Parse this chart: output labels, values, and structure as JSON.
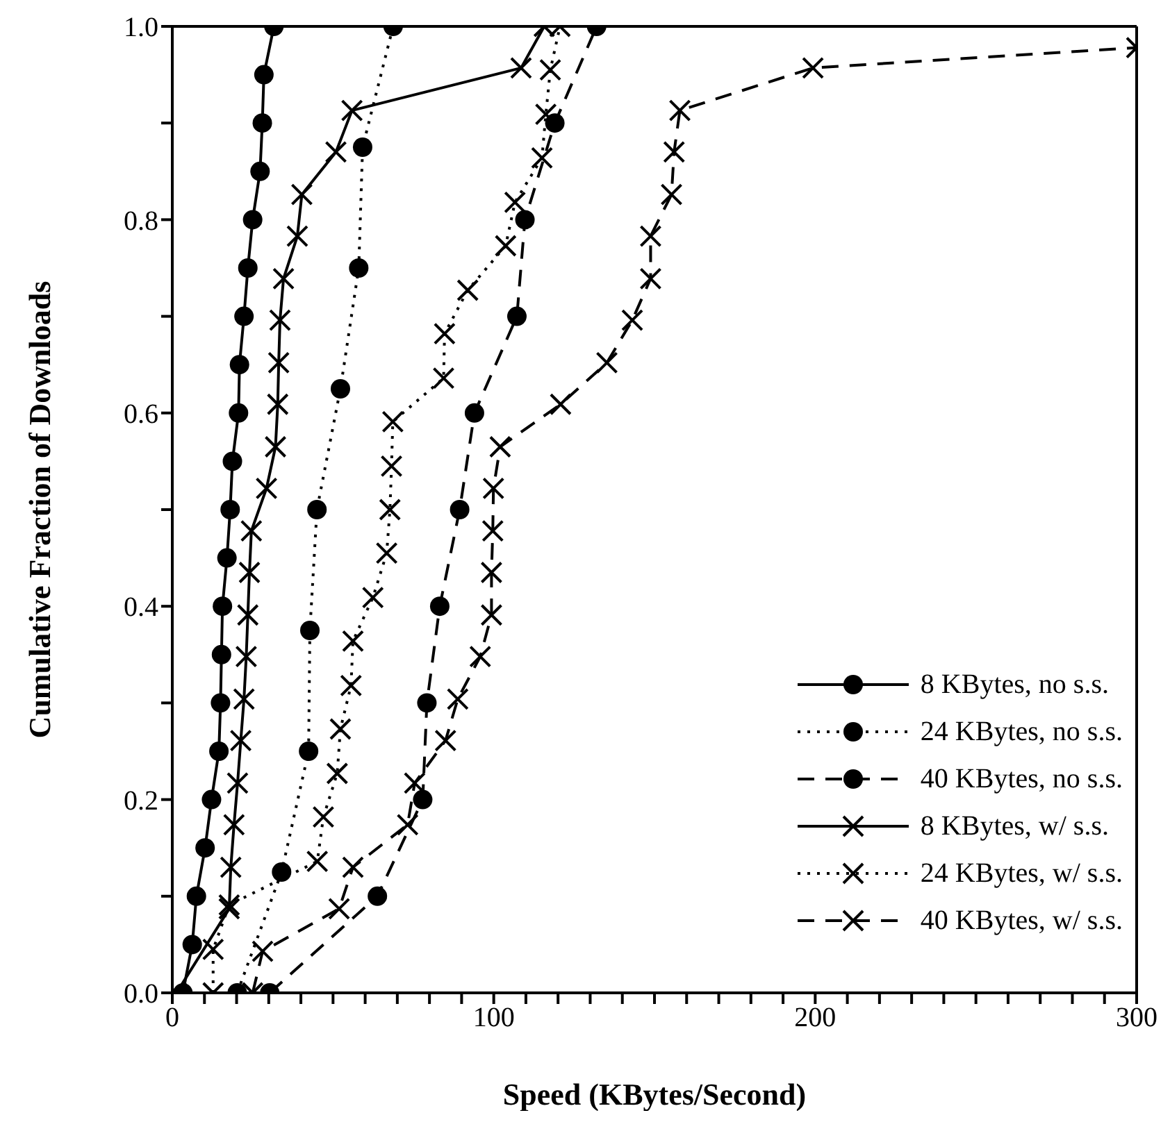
{
  "chart_data": {
    "type": "line",
    "xlabel": "Speed (KBytes/Second)",
    "ylabel": "Cumulative Fraction of Downloads",
    "xlim": [
      0,
      300
    ],
    "ylim": [
      0,
      1
    ],
    "xticks": [
      0,
      {
        "value": 10,
        "label": null
      },
      {
        "value": 20,
        "label": null
      },
      {
        "value": 30,
        "label": null
      },
      {
        "value": 40,
        "label": null
      },
      {
        "value": 50,
        "label": null
      },
      {
        "value": 60,
        "label": null
      },
      {
        "value": 70,
        "label": null
      },
      {
        "value": 80,
        "label": null
      },
      {
        "value": 90,
        "label": null
      },
      100,
      {
        "value": 110,
        "label": null
      },
      {
        "value": 120,
        "label": null
      },
      {
        "value": 130,
        "label": null
      },
      {
        "value": 140,
        "label": null
      },
      {
        "value": 150,
        "label": null
      },
      {
        "value": 160,
        "label": null
      },
      {
        "value": 170,
        "label": null
      },
      {
        "value": 180,
        "label": null
      },
      {
        "value": 190,
        "label": null
      },
      200,
      {
        "value": 210,
        "label": null
      },
      {
        "value": 220,
        "label": null
      },
      {
        "value": 230,
        "label": null
      },
      {
        "value": 240,
        "label": null
      },
      {
        "value": 250,
        "label": null
      },
      {
        "value": 260,
        "label": null
      },
      {
        "value": 270,
        "label": null
      },
      {
        "value": 280,
        "label": null
      },
      {
        "value": 290,
        "label": null
      },
      300
    ],
    "yticks": [
      {
        "value": 0,
        "label": "0.0"
      },
      {
        "value": 0.1,
        "label": null
      },
      {
        "value": 0.2,
        "label": "0.2"
      },
      {
        "value": 0.3,
        "label": null
      },
      {
        "value": 0.4,
        "label": "0.4"
      },
      {
        "value": 0.5,
        "label": null
      },
      {
        "value": 0.6,
        "label": "0.6"
      },
      {
        "value": 0.7,
        "label": null
      },
      {
        "value": 0.8,
        "label": "0.8"
      },
      {
        "value": 0.9,
        "label": null
      },
      {
        "value": 1,
        "label": "1.0"
      }
    ],
    "grid": false,
    "legend": "bottom right",
    "series": [
      {
        "name": "8 KBytes, no s.s.",
        "color": "#000000",
        "marker": "circle",
        "line_style": "solid",
        "x": [
          3.3,
          6.2,
          7.5,
          10.2,
          12.2,
          14.5,
          15,
          15.3,
          15.6,
          17,
          18,
          18.7,
          20.6,
          20.9,
          22.3,
          23.5,
          25,
          27.3,
          28,
          28.5,
          31.6
        ],
        "values": [
          0,
          0.05,
          0.1,
          0.15,
          0.2,
          0.25,
          0.3,
          0.35,
          0.4,
          0.45,
          0.5,
          0.55,
          0.6,
          0.65,
          0.7,
          0.75,
          0.8,
          0.85,
          0.9,
          0.95,
          1
        ]
      },
      {
        "name": "24 KBytes, no s.s.",
        "color": "#000000",
        "marker": "circle",
        "line_style": "dotted",
        "x": [
          20.2,
          34,
          42.4,
          42.8,
          45,
          52.3,
          58,
          59.2,
          68.7
        ],
        "values": [
          0,
          0.125,
          0.25,
          0.375,
          0.5,
          0.625,
          0.75,
          0.875,
          1
        ]
      },
      {
        "name": "40 KBytes, no s.s.",
        "color": "#000000",
        "marker": "circle",
        "line_style": "dashed",
        "x": [
          30.3,
          63.8,
          77.9,
          79.2,
          83.2,
          89.4,
          94,
          107.2,
          109.7,
          119,
          132
        ],
        "values": [
          0,
          0.1,
          0.2,
          0.3,
          0.4,
          0.5,
          0.6,
          0.7,
          0.8,
          0.9,
          1
        ]
      },
      {
        "name": "8 KBytes, w/ s.s.",
        "color": "#000000",
        "marker": "cross",
        "line_style": "solid",
        "x": [
          1.3,
          4.3,
          17.7,
          18.2,
          19.2,
          20.3,
          21.3,
          22.3,
          23,
          23.5,
          24,
          24.6,
          29.3,
          32.1,
          32.8,
          33.1,
          33.5,
          34.6,
          38.9,
          40.3,
          50.9,
          55.9,
          108.5,
          115.7
        ],
        "values": [
          0,
          null,
          0.087,
          0.13,
          0.174,
          0.217,
          0.261,
          0.304,
          0.348,
          0.391,
          0.435,
          0.478,
          0.522,
          0.565,
          0.609,
          0.652,
          0.696,
          0.739,
          0.783,
          0.826,
          0.87,
          0.913,
          0.957,
          1
        ]
      },
      {
        "name": "24 KBytes, w/ s.s.",
        "color": "#000000",
        "marker": "cross",
        "line_style": "dotted",
        "x": [
          12.7,
          12.7,
          17.7,
          45.1,
          47,
          51.3,
          52.3,
          55.6,
          56.2,
          62.4,
          66.7,
          67.7,
          68.2,
          68.6,
          84.4,
          84.7,
          91.9,
          103.7,
          106.6,
          115,
          116.2,
          117.6,
          120.6
        ],
        "values": [
          0,
          0.045,
          0.091,
          0.136,
          0.182,
          0.227,
          0.273,
          0.318,
          0.364,
          0.409,
          0.455,
          0.5,
          0.545,
          0.591,
          0.636,
          0.682,
          0.727,
          0.773,
          0.818,
          0.864,
          0.909,
          0.955,
          1
        ]
      },
      {
        "name": "40 KBytes, w/ s.s.",
        "color": "#000000",
        "marker": "cross",
        "line_style": "dashed",
        "x": [
          25,
          28.1,
          51.9,
          56.2,
          73.2,
          75.4,
          85,
          88.8,
          95.8,
          99.3,
          99.3,
          99.7,
          99.9,
          102,
          120.8,
          135.2,
          143.1,
          148.8,
          148.8,
          155.3,
          156.1,
          157.9,
          199.3,
          300
        ],
        "values": [
          0,
          0.043,
          0.087,
          0.13,
          0.174,
          0.217,
          0.261,
          0.304,
          0.348,
          0.391,
          0.435,
          0.478,
          0.522,
          0.565,
          0.609,
          0.652,
          0.696,
          0.739,
          0.783,
          0.826,
          0.87,
          0.913,
          0.957,
          0.978
        ]
      }
    ]
  }
}
